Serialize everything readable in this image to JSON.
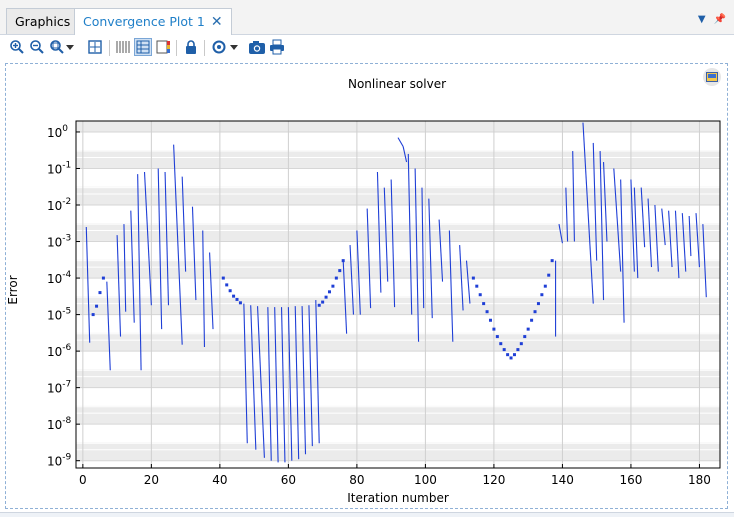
{
  "tabs": [
    {
      "label": "Graphics",
      "active": false
    },
    {
      "label": "Convergence Plot 1",
      "active": true
    }
  ],
  "toolbar_icons": [
    "zoom-in-icon",
    "zoom-out-icon",
    "zoom-box-icon",
    "dropdown-icon",
    "zoom-extents-icon",
    "grid-lines-icon",
    "grid-boxes-icon",
    "color-legend-icon",
    "lock-icon",
    "rotate-icon",
    "dropdown-icon",
    "camera-icon",
    "print-icon"
  ],
  "colors": {
    "series": "#1f3fd6",
    "accent": "#1f7fc8",
    "band": "#ebebeb"
  },
  "chart_data": {
    "type": "line",
    "title": "Nonlinear solver",
    "xlabel": "Iteration number",
    "ylabel": "Error",
    "xlim": [
      -2,
      186
    ],
    "ylim": [
      -9.2,
      0.3
    ],
    "yscale": "log",
    "grid": true,
    "x_ticks": [
      0,
      20,
      40,
      60,
      80,
      100,
      120,
      140,
      160,
      180
    ],
    "y_ticks": [
      {
        "exp": 0,
        "label": "10",
        "sup": "0"
      },
      {
        "exp": -1,
        "label": "10",
        "sup": "-1"
      },
      {
        "exp": -2,
        "label": "10",
        "sup": "-2"
      },
      {
        "exp": -3,
        "label": "10",
        "sup": "-3"
      },
      {
        "exp": -4,
        "label": "10",
        "sup": "-4"
      },
      {
        "exp": -5,
        "label": "10",
        "sup": "-5"
      },
      {
        "exp": -6,
        "label": "10",
        "sup": "-6"
      },
      {
        "exp": -7,
        "label": "10",
        "sup": "-7"
      },
      {
        "exp": -8,
        "label": "10",
        "sup": "-8"
      },
      {
        "exp": -9,
        "label": "10",
        "sup": "-9"
      }
    ],
    "segments": [
      {
        "x0": 1,
        "y0": 0.0025,
        "x1": 2,
        "y1": 1.7e-06
      },
      {
        "x0": 7,
        "y0": 8e-05,
        "x1": 8,
        "y1": 3e-07
      },
      {
        "x0": 10,
        "y0": 0.0015,
        "x1": 11,
        "y1": 2.5e-06
      },
      {
        "x0": 12,
        "y0": 0.003,
        "x1": 12.5,
        "y1": 1.2e-05
      },
      {
        "x0": 14,
        "y0": 0.007,
        "x1": 15,
        "y1": 6e-06
      },
      {
        "x0": 16,
        "y0": 0.07,
        "x1": 17,
        "y1": 3e-07
      },
      {
        "x0": 18,
        "y0": 0.08,
        "x1": 20,
        "y1": 1.8e-05
      },
      {
        "x0": 22,
        "y0": 0.1,
        "x1": 23,
        "y1": 4e-06
      },
      {
        "x0": 24,
        "y0": 0.08,
        "x1": 25,
        "y1": 1.8e-05
      },
      {
        "x0": 26.5,
        "y0": 0.45,
        "x1": 29,
        "y1": 1.5e-06
      },
      {
        "x0": 29,
        "y0": 0.06,
        "x1": 30,
        "y1": 0.00015
      },
      {
        "x0": 32,
        "y0": 0.009,
        "x1": 33,
        "y1": 2.5e-05
      },
      {
        "x0": 35,
        "y0": 0.002,
        "x1": 35.5,
        "y1": 1.3e-06
      },
      {
        "x0": 37,
        "y0": 0.0005,
        "x1": 38,
        "y1": 4e-06
      },
      {
        "x0": 47,
        "y0": 2e-05,
        "x1": 48,
        "y1": 3e-09
      },
      {
        "x0": 49,
        "y0": 1.8e-05,
        "x1": 50.5,
        "y1": 2e-09
      },
      {
        "x0": 51,
        "y0": 1.7e-05,
        "x1": 53,
        "y1": 1.2e-09
      },
      {
        "x0": 54,
        "y0": 1.6e-05,
        "x1": 55,
        "y1": 1e-09
      },
      {
        "x0": 56,
        "y0": 1.6e-05,
        "x1": 57,
        "y1": 9e-10
      },
      {
        "x0": 58,
        "y0": 1.6e-05,
        "x1": 59,
        "y1": 9e-10
      },
      {
        "x0": 60,
        "y0": 1.6e-05,
        "x1": 61,
        "y1": 1e-09
      },
      {
        "x0": 62,
        "y0": 1.7e-05,
        "x1": 63,
        "y1": 1.1e-09
      },
      {
        "x0": 64,
        "y0": 1.7e-05,
        "x1": 65,
        "y1": 1.5e-09
      },
      {
        "x0": 66,
        "y0": 1.8e-05,
        "x1": 67,
        "y1": 2.5e-09
      },
      {
        "x0": 68,
        "y0": 2.5e-05,
        "x1": 69,
        "y1": 3e-09
      },
      {
        "x0": 76,
        "y0": 0.0003,
        "x1": 77,
        "y1": 3e-06
      },
      {
        "x0": 78,
        "y0": 0.0008,
        "x1": 79,
        "y1": 1e-05
      },
      {
        "x0": 80,
        "y0": 0.002,
        "x1": 81,
        "y1": 1e-05
      },
      {
        "x0": 83,
        "y0": 0.008,
        "x1": 84,
        "y1": 1.5e-05
      },
      {
        "x0": 86,
        "y0": 0.08,
        "x1": 87,
        "y1": 4e-05
      },
      {
        "x0": 88,
        "y0": 0.03,
        "x1": 89,
        "y1": 8e-05
      },
      {
        "x0": 90,
        "y0": 0.05,
        "x1": 91,
        "y1": 1.6e-05
      },
      {
        "x0": 92,
        "y0": 0.7,
        "x1": 93.5,
        "y1": 0.4
      },
      {
        "x0": 93.5,
        "y0": 0.4,
        "x1": 94.5,
        "y1": 0.15
      },
      {
        "x0": 95,
        "y0": 0.25,
        "x1": 96,
        "y1": 1e-05
      },
      {
        "x0": 97,
        "y0": 0.1,
        "x1": 98,
        "y1": 1.8e-06
      },
      {
        "x0": 99,
        "y0": 0.03,
        "x1": 99.5,
        "y1": 1.5e-05
      },
      {
        "x0": 101,
        "y0": 0.015,
        "x1": 102,
        "y1": 8e-06
      },
      {
        "x0": 104,
        "y0": 0.004,
        "x1": 105,
        "y1": 8e-05
      },
      {
        "x0": 107,
        "y0": 0.002,
        "x1": 108,
        "y1": 1.8e-06
      },
      {
        "x0": 110,
        "y0": 0.0008,
        "x1": 111,
        "y1": 1.3e-05
      },
      {
        "x0": 112,
        "y0": 0.0003,
        "x1": 113,
        "y1": 2e-05
      },
      {
        "x0": 138,
        "y0": 0.0003,
        "x1": 138,
        "y1": 2.5e-06
      },
      {
        "x0": 139,
        "y0": 0.003,
        "x1": 140,
        "y1": 0.0009
      },
      {
        "x0": 141,
        "y0": 0.03,
        "x1": 141.5,
        "y1": 0.001
      },
      {
        "x0": 143,
        "y0": 0.3,
        "x1": 143.5,
        "y1": 0.001
      },
      {
        "x0": 146,
        "y0": 1.8,
        "x1": 149,
        "y1": 2e-05
      },
      {
        "x0": 149,
        "y0": 0.5,
        "x1": 150,
        "y1": 0.0003
      },
      {
        "x0": 151,
        "y0": 0.3,
        "x1": 152,
        "y1": 2.5e-05
      },
      {
        "x0": 152,
        "y0": 0.15,
        "x1": 153,
        "y1": 0.001
      },
      {
        "x0": 155,
        "y0": 0.1,
        "x1": 157,
        "y1": 0.00015
      },
      {
        "x0": 157,
        "y0": 0.05,
        "x1": 158,
        "y1": 6e-06
      },
      {
        "x0": 160,
        "y0": 0.05,
        "x1": 161,
        "y1": 0.00015
      },
      {
        "x0": 161,
        "y0": 0.03,
        "x1": 162,
        "y1": 0.0001
      },
      {
        "x0": 163,
        "y0": 0.03,
        "x1": 164,
        "y1": 0.0007
      },
      {
        "x0": 165,
        "y0": 0.015,
        "x1": 166,
        "y1": 0.0002
      },
      {
        "x0": 167,
        "y0": 0.01,
        "x1": 168,
        "y1": 0.00015
      },
      {
        "x0": 169,
        "y0": 0.008,
        "x1": 170,
        "y1": 0.0008
      },
      {
        "x0": 171,
        "y0": 0.007,
        "x1": 172,
        "y1": 0.0002
      },
      {
        "x0": 173,
        "y0": 0.007,
        "x1": 174,
        "y1": 0.0001
      },
      {
        "x0": 175,
        "y0": 0.006,
        "x1": 176,
        "y1": 0.00015
      },
      {
        "x0": 177,
        "y0": 0.005,
        "x1": 177.5,
        "y1": 0.0004
      },
      {
        "x0": 179,
        "y0": 0.006,
        "x1": 180,
        "y1": 0.0002
      },
      {
        "x0": 181,
        "y0": 0.003,
        "x1": 182,
        "y1": 3e-05
      }
    ],
    "markers": [
      {
        "x": 3,
        "y": 1e-05
      },
      {
        "x": 4,
        "y": 1.7e-05
      },
      {
        "x": 5,
        "y": 4e-05
      },
      {
        "x": 6,
        "y": 0.0001
      },
      {
        "x": 41,
        "y": 0.0001
      },
      {
        "x": 42,
        "y": 6.5e-05
      },
      {
        "x": 43,
        "y": 4.5e-05
      },
      {
        "x": 44,
        "y": 3.2e-05
      },
      {
        "x": 45,
        "y": 2.6e-05
      },
      {
        "x": 46,
        "y": 2.1e-05
      },
      {
        "x": 69,
        "y": 1.8e-05
      },
      {
        "x": 70,
        "y": 2.2e-05
      },
      {
        "x": 71,
        "y": 3e-05
      },
      {
        "x": 72,
        "y": 4.2e-05
      },
      {
        "x": 73,
        "y": 6e-05
      },
      {
        "x": 74,
        "y": 0.0001
      },
      {
        "x": 75,
        "y": 0.00016
      },
      {
        "x": 76,
        "y": 0.0003
      },
      {
        "x": 114,
        "y": 0.0001
      },
      {
        "x": 115,
        "y": 6e-05
      },
      {
        "x": 116,
        "y": 3.5e-05
      },
      {
        "x": 117,
        "y": 2e-05
      },
      {
        "x": 118,
        "y": 1.2e-05
      },
      {
        "x": 119,
        "y": 7e-06
      },
      {
        "x": 120,
        "y": 4e-06
      },
      {
        "x": 121,
        "y": 2.5e-06
      },
      {
        "x": 122,
        "y": 1.6e-06
      },
      {
        "x": 123,
        "y": 1.1e-06
      },
      {
        "x": 124,
        "y": 8e-07
      },
      {
        "x": 125,
        "y": 6.5e-07
      },
      {
        "x": 126,
        "y": 8e-07
      },
      {
        "x": 127,
        "y": 1.1e-06
      },
      {
        "x": 128,
        "y": 1.6e-06
      },
      {
        "x": 129,
        "y": 2.5e-06
      },
      {
        "x": 130,
        "y": 4e-06
      },
      {
        "x": 131,
        "y": 7e-06
      },
      {
        "x": 132,
        "y": 1.2e-05
      },
      {
        "x": 133,
        "y": 2e-05
      },
      {
        "x": 134,
        "y": 3.5e-05
      },
      {
        "x": 135,
        "y": 6e-05
      },
      {
        "x": 136,
        "y": 0.00012
      },
      {
        "x": 137,
        "y": 0.0003
      }
    ]
  }
}
